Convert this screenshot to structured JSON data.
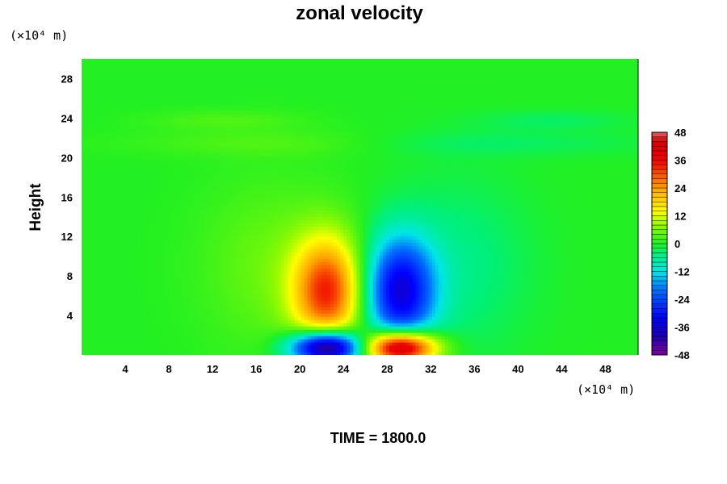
{
  "chart_data": {
    "type": "heatmap",
    "title": "zonal velocity",
    "ylabel": "Height",
    "x_unit_label": "(×10⁴ m)",
    "y_unit_label": "(×10⁴ m)",
    "xlim": [
      0,
      51
    ],
    "ylim": [
      0,
      30
    ],
    "x_ticks": [
      4,
      8,
      12,
      16,
      20,
      24,
      28,
      32,
      36,
      40,
      44,
      48
    ],
    "y_ticks": [
      4,
      8,
      12,
      16,
      20,
      24,
      28
    ],
    "colorbar": {
      "range": [
        -48,
        48
      ],
      "ticks": [
        48,
        36,
        24,
        12,
        0,
        -12,
        -24,
        -36,
        -48
      ]
    },
    "time_label": "TIME = 1800.0",
    "features": [
      {
        "x": 22.5,
        "y": 6.5,
        "sx": 2.2,
        "sy": 3.8,
        "amp": 32
      },
      {
        "x": 29.2,
        "y": 6.5,
        "sx": 2.2,
        "sy": 3.8,
        "amp": -34
      },
      {
        "x": 22.5,
        "y": 0.8,
        "sx": 2.3,
        "sy": 1.2,
        "amp": -52
      },
      {
        "x": 29.2,
        "y": 0.8,
        "sx": 2.3,
        "sy": 1.2,
        "amp": 52
      },
      {
        "x": 17.5,
        "y": 9.0,
        "sx": 4.5,
        "sy": 6.0,
        "amp": 5
      },
      {
        "x": 34.5,
        "y": 9.0,
        "sx": 4.5,
        "sy": 6.0,
        "amp": -5
      },
      {
        "x": 17.0,
        "y": 21.5,
        "sx": 9.0,
        "sy": 0.9,
        "amp": 3
      },
      {
        "x": 38.0,
        "y": 21.5,
        "sx": 10.0,
        "sy": 0.9,
        "amp": -3
      },
      {
        "x": 13.0,
        "y": 23.8,
        "sx": 5.0,
        "sy": 0.7,
        "amp": 3
      },
      {
        "x": 43.0,
        "y": 23.8,
        "sx": 5.0,
        "sy": 0.7,
        "amp": -3
      }
    ]
  }
}
